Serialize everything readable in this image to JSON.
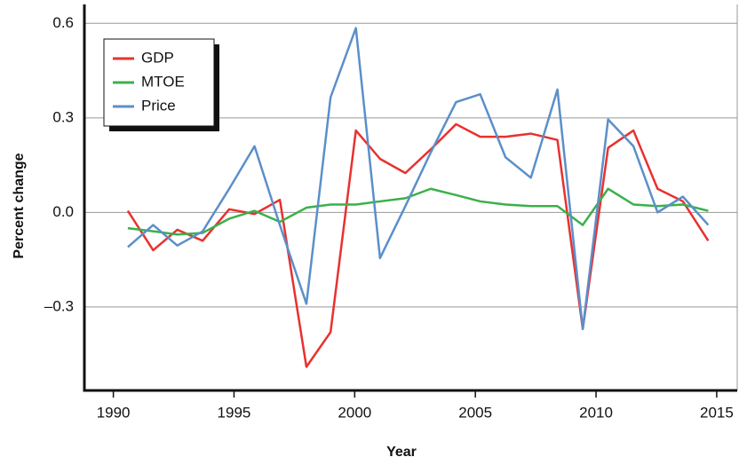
{
  "chart_data": {
    "type": "line",
    "x_label": "Year",
    "y_label": "Percent change",
    "x": [
      1990.6,
      1991.65,
      1992.65,
      1993.7,
      1994.8,
      1995.85,
      1996.9,
      1998.0,
      1999.0,
      2000.05,
      2001.05,
      2002.1,
      2003.15,
      2004.2,
      2005.2,
      2006.25,
      2007.3,
      2008.4,
      2009.45,
      2010.5,
      2011.55,
      2012.55,
      2013.6,
      2014.65
    ],
    "series": [
      {
        "name": "GDP",
        "color": "#e8312f",
        "values": [
          0.005,
          -0.12,
          -0.055,
          -0.09,
          0.01,
          -0.005,
          0.04,
          -0.49,
          -0.38,
          0.26,
          0.17,
          0.125,
          0.2,
          0.28,
          0.24,
          0.24,
          0.25,
          0.23,
          -0.37,
          0.205,
          0.26,
          0.075,
          0.035,
          -0.09
        ]
      },
      {
        "name": "MTOE",
        "color": "#3bb04a",
        "values": [
          -0.05,
          -0.06,
          -0.07,
          -0.065,
          -0.02,
          0.005,
          -0.03,
          0.015,
          0.025,
          0.025,
          0.035,
          0.045,
          0.075,
          0.055,
          0.035,
          0.025,
          0.02,
          0.02,
          -0.04,
          0.075,
          0.025,
          0.02,
          0.025,
          0.005
        ]
      },
      {
        "name": "Price",
        "color": "#5b8fc9",
        "values": [
          -0.11,
          -0.04,
          -0.105,
          -0.06,
          0.075,
          0.21,
          -0.04,
          -0.29,
          0.365,
          0.585,
          -0.145,
          0.02,
          0.19,
          0.35,
          0.375,
          0.175,
          0.11,
          0.39,
          -0.37,
          0.295,
          0.21,
          0.0,
          0.05,
          -0.04
        ]
      }
    ],
    "xlim": [
      1988.8,
      2015.85
    ],
    "ylim": [
      -0.565,
      0.66
    ],
    "xticks": [
      1990,
      1995,
      2000,
      2005,
      2010,
      2015
    ],
    "yticks": [
      {
        "value": -0.3,
        "label": "–0.3"
      },
      {
        "value": 0,
        "label": "0.0"
      },
      0.3,
      0.6
    ],
    "grid": true,
    "legend": "upper left"
  }
}
